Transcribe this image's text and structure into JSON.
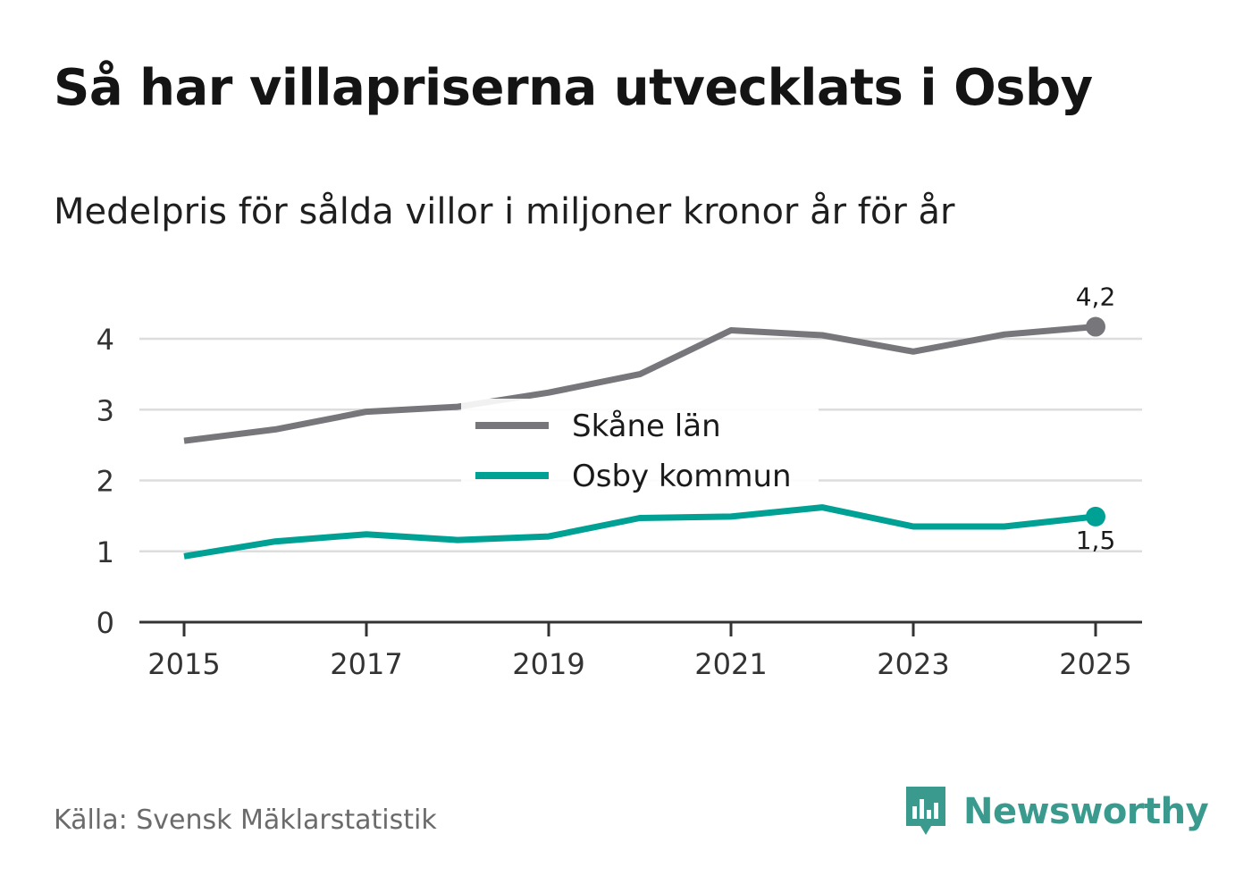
{
  "title": "Så har villapriserna utvecklats i Osby",
  "subtitle": "Medelpris för sålda villor i miljoner kronor år för år",
  "source": "Källa: Svensk Mäklarstatistik",
  "brand": {
    "name": "Newsworthy",
    "icon": "newsworthy-logo-icon",
    "color": "#3a9a8e"
  },
  "colors": {
    "skane": "#77767b",
    "osby": "#00a195",
    "grid": "#dddddd",
    "axis": "#333333"
  },
  "chart_data": {
    "type": "line",
    "title": "Medelpris för sålda villor i miljoner kronor år för år",
    "xlabel": "",
    "ylabel": "",
    "x": [
      2015,
      2016,
      2017,
      2018,
      2019,
      2020,
      2021,
      2022,
      2023,
      2024,
      2025
    ],
    "xticks": [
      "2015",
      "2017",
      "2019",
      "2021",
      "2023",
      "2025"
    ],
    "yticks": [
      "0",
      "1",
      "2",
      "3",
      "4"
    ],
    "ylim": [
      0,
      4.4
    ],
    "grid": true,
    "legend": "center",
    "series": [
      {
        "name": "Skåne län",
        "color": "#77767b",
        "values": [
          2.56,
          2.72,
          2.97,
          3.04,
          3.24,
          3.5,
          4.12,
          4.05,
          3.82,
          4.06,
          4.17
        ],
        "end_label": "4,2"
      },
      {
        "name": "Osby kommun",
        "color": "#00a195",
        "values": [
          0.93,
          1.14,
          1.24,
          1.16,
          1.21,
          1.47,
          1.49,
          1.62,
          1.35,
          1.35,
          1.49
        ],
        "end_label": "1,5"
      }
    ]
  }
}
